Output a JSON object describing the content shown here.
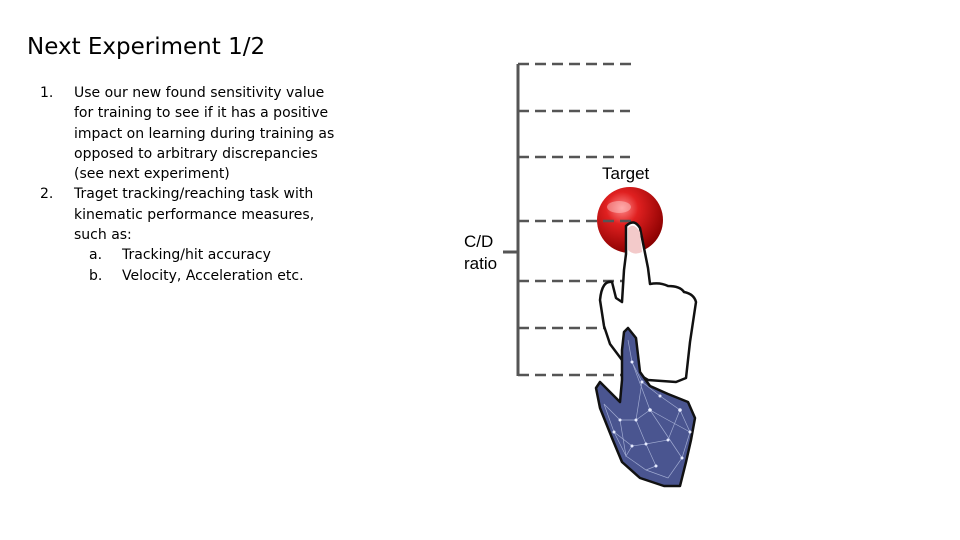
{
  "slide": {
    "title": "Next Experiment 1/2",
    "items": [
      {
        "marker": "1.",
        "text": "Use our new found sensitivity value for training to see if it has a positive impact on learning during training as opposed to arbitrary discrepancies (see next experiment)"
      },
      {
        "marker": "2.",
        "text": "Traget tracking/reaching task with kinematic performance measures, such as:",
        "subitems": [
          {
            "marker": "a.",
            "text": "Tracking/hit accuracy"
          },
          {
            "marker": "b.",
            "text": "Velocity, Acceleration etc."
          }
        ]
      }
    ]
  },
  "diagram": {
    "target_label": "Target",
    "cd_label_line1": "C/D",
    "cd_label_line2": "ratio",
    "colors": {
      "target": "#cc1010",
      "scale_lines": "#555555",
      "virtual_hand_fill": "#4a5590",
      "virtual_hand_network": "#c6d0ee",
      "outline_hand": "#111111"
    },
    "icons": [
      "red-sphere-target-icon",
      "outline-hand-icon",
      "virtual-network-hand-icon"
    ]
  }
}
